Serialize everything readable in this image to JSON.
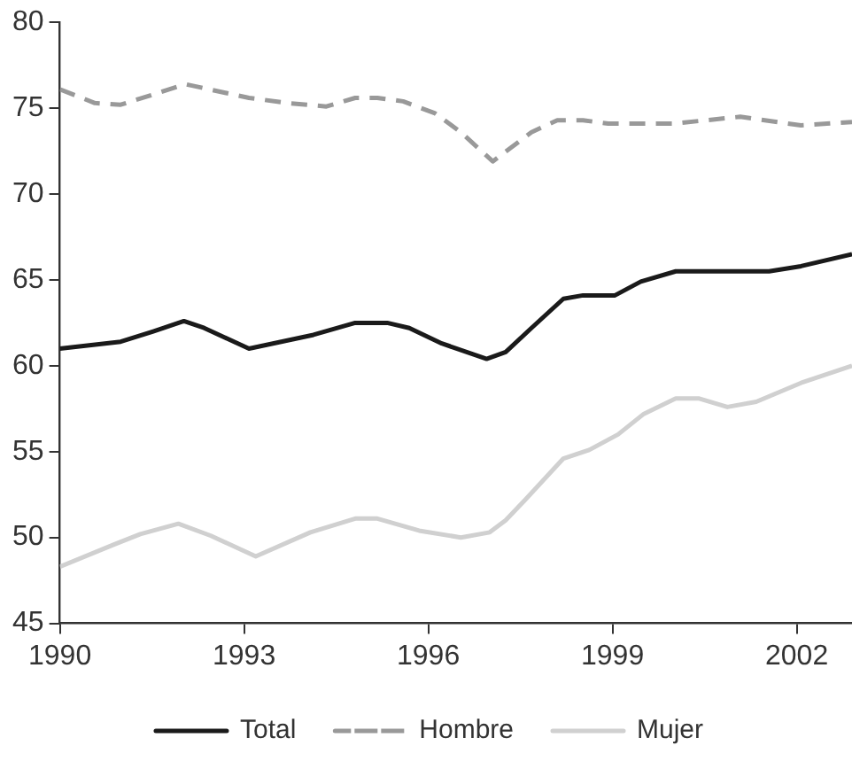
{
  "chart_data": {
    "type": "line",
    "xlim": [
      1990,
      2002.9
    ],
    "xticks": [
      1990,
      1993,
      1996,
      1999,
      2002
    ],
    "ylim": [
      45,
      80
    ],
    "yticks": [
      45,
      50,
      55,
      60,
      65,
      70,
      75,
      80
    ],
    "grid": false,
    "legend": "bottom",
    "marker": "none",
    "series": [
      {
        "name": "Total",
        "color": "#1a1a1a",
        "line_style": "solid",
        "x": [
          1990,
          1990.99,
          1991.52,
          1992.02,
          1992.35,
          1993.08,
          1994.13,
          1994.81,
          1995.33,
          1995.69,
          1996.22,
          1996.95,
          1997.26,
          1997.68,
          1998.2,
          1998.52,
          1999.04,
          1999.46,
          2000.03,
          2001.55,
          2002.07,
          2002.9
        ],
        "values": [
          61.0,
          61.4,
          62.0,
          62.6,
          62.2,
          61.0,
          61.8,
          62.5,
          62.5,
          62.2,
          61.3,
          60.4,
          60.8,
          62.2,
          63.9,
          64.1,
          64.1,
          64.9,
          65.5,
          65.5,
          65.8,
          66.5
        ]
      },
      {
        "name": "Hombre",
        "color": "#999999",
        "line_style": "dashed",
        "x": [
          1990,
          1990.57,
          1990.99,
          1991.52,
          1992.04,
          1993.08,
          1993.71,
          1994.34,
          1994.81,
          1995.17,
          1995.59,
          1996.11,
          1996.53,
          1997.05,
          1997.68,
          1998.1,
          1998.52,
          1998.93,
          1999.98,
          2001.08,
          2002.07,
          2002.9
        ],
        "values": [
          76.1,
          75.3,
          75.2,
          75.8,
          76.4,
          75.6,
          75.3,
          75.1,
          75.6,
          75.6,
          75.4,
          74.7,
          73.6,
          71.9,
          73.6,
          74.3,
          74.3,
          74.1,
          74.1,
          74.5,
          74.0,
          74.2
        ]
      },
      {
        "name": "Mujer",
        "color": "#d0d0d0",
        "line_style": "solid",
        "x": [
          1990,
          1990.89,
          1991.31,
          1991.93,
          1992.46,
          1993.19,
          1994.08,
          1994.81,
          1995.17,
          1995.85,
          1996.53,
          1997.0,
          1997.26,
          1997.58,
          1998.2,
          1998.62,
          1999.09,
          1999.51,
          2000.03,
          2000.4,
          2000.87,
          2001.34,
          2002.07,
          2002.9
        ],
        "values": [
          48.3,
          49.6,
          50.2,
          50.8,
          50.1,
          48.9,
          50.3,
          51.1,
          51.1,
          50.4,
          50.0,
          50.3,
          51.0,
          52.2,
          54.6,
          55.1,
          56.0,
          57.2,
          58.1,
          58.1,
          57.6,
          57.9,
          59.0,
          60.0
        ]
      }
    ]
  }
}
